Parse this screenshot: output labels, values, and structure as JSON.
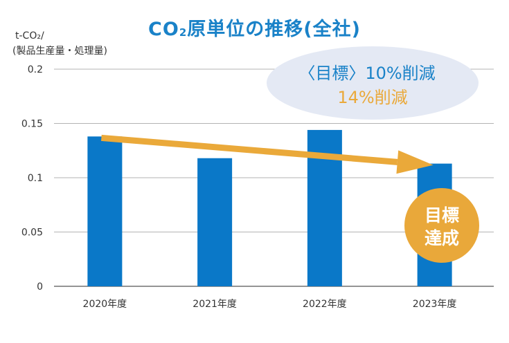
{
  "chart_data": {
    "type": "bar",
    "title": "CO₂原単位の推移(全社)",
    "title_parts": {
      "prefix": "CO",
      "sub": "2",
      "suffix": "原単位の推移(全社)"
    },
    "ylabel": [
      "t-CO₂/",
      "(製品生産量・処理量)"
    ],
    "categories": [
      "2020年度",
      "2021年度",
      "2022年度",
      "2023年度"
    ],
    "values": [
      0.138,
      0.118,
      0.144,
      0.113
    ],
    "ylim": [
      0,
      0.2
    ],
    "yticks": [
      0,
      0.05,
      0.1,
      0.15,
      0.2
    ],
    "ytick_labels": [
      "0",
      "0.05",
      "0.1",
      "0.15",
      "0.2"
    ],
    "grid": true,
    "annotations": {
      "target": "〈目標〉10%削減",
      "result": "14%削減",
      "badge_line1": "目標",
      "badge_line2": "達成"
    },
    "colors": {
      "bar": "#0a78c8",
      "title": "#1a82c8",
      "arrow": "#eaa93a",
      "ellipse": "#e4e9f4",
      "target_text": "#1a82c8",
      "result_text": "#eaa93a",
      "badge": "#e9a83a"
    }
  }
}
